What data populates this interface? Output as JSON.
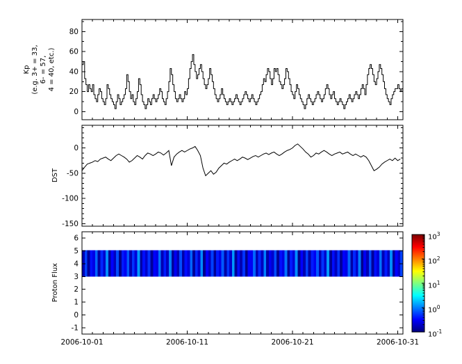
{
  "colors": {
    "line": "#000000",
    "frame": "#000000",
    "background": "#ffffff"
  },
  "ylabels": {
    "kp_lines": [
      "Kp",
      "(e.g. 3+ = 33,",
      "6- = 57,",
      "4 = 40, etc.)"
    ],
    "dst": "DST",
    "flux": "Proton Flux"
  },
  "xaxis": {
    "tick_labels": [
      "2006-10-01",
      "2006-10-11",
      "2006-10-21",
      "2006-10-31"
    ],
    "tick_days": [
      0,
      10,
      20,
      30
    ],
    "domain_days": [
      0,
      30.5
    ]
  },
  "colorbar": {
    "base": "10",
    "tick_exponents": [
      "3",
      "2",
      "1",
      "0",
      "-1"
    ],
    "log_min": -1,
    "log_max": 3,
    "colormap": "jet"
  },
  "chart_data": [
    {
      "type": "line",
      "name": "kp-index",
      "style": "steps",
      "ylabel": "Kp (e.g. 3+ = 33, 6- = 57, 4 = 40, etc.)",
      "ylim": [
        -8,
        92
      ],
      "yticks": [
        0,
        20,
        40,
        60,
        80
      ],
      "yminor_step": 10,
      "cadence_hours": 3,
      "x_start": "2006-10-01",
      "values": [
        47,
        50,
        33,
        27,
        20,
        27,
        23,
        20,
        27,
        17,
        13,
        10,
        17,
        23,
        20,
        13,
        10,
        7,
        13,
        27,
        23,
        17,
        13,
        10,
        7,
        3,
        10,
        17,
        13,
        7,
        10,
        13,
        17,
        23,
        37,
        30,
        20,
        13,
        17,
        10,
        7,
        13,
        20,
        33,
        27,
        17,
        10,
        7,
        3,
        7,
        13,
        10,
        7,
        13,
        17,
        13,
        10,
        13,
        17,
        23,
        20,
        13,
        10,
        7,
        13,
        20,
        30,
        43,
        37,
        27,
        20,
        13,
        10,
        13,
        17,
        13,
        10,
        13,
        20,
        17,
        23,
        33,
        43,
        50,
        57,
        47,
        40,
        33,
        37,
        43,
        47,
        40,
        33,
        27,
        23,
        27,
        33,
        43,
        37,
        30,
        23,
        17,
        13,
        10,
        13,
        17,
        23,
        17,
        13,
        10,
        7,
        10,
        13,
        10,
        7,
        10,
        13,
        17,
        13,
        10,
        7,
        10,
        13,
        17,
        20,
        17,
        13,
        10,
        13,
        17,
        13,
        10,
        7,
        10,
        13,
        17,
        20,
        27,
        33,
        30,
        37,
        43,
        40,
        33,
        27,
        33,
        43,
        40,
        43,
        37,
        30,
        27,
        23,
        27,
        33,
        43,
        40,
        33,
        27,
        20,
        17,
        13,
        20,
        27,
        23,
        17,
        13,
        10,
        7,
        3,
        7,
        13,
        17,
        13,
        10,
        7,
        10,
        13,
        17,
        20,
        17,
        13,
        10,
        13,
        17,
        23,
        27,
        23,
        17,
        13,
        17,
        20,
        13,
        10,
        7,
        10,
        13,
        10,
        7,
        3,
        7,
        10,
        13,
        17,
        13,
        10,
        13,
        17,
        20,
        17,
        13,
        17,
        23,
        27,
        23,
        17,
        27,
        37,
        43,
        47,
        43,
        37,
        30,
        27,
        33,
        40,
        47,
        43,
        37,
        30,
        23,
        17,
        13,
        10,
        7,
        13,
        17,
        20,
        23,
        23,
        27,
        23,
        20,
        23
      ]
    },
    {
      "type": "line",
      "name": "dst-index",
      "style": "line",
      "ylabel": "DST",
      "ylim": [
        -155,
        45
      ],
      "yticks": [
        0,
        -50,
        -100,
        -150
      ],
      "yminor_step": 10,
      "cadence_hours": 6,
      "x_start": "2006-10-01",
      "values": [
        -45,
        -38,
        -32,
        -30,
        -28,
        -25,
        -27,
        -22,
        -20,
        -18,
        -22,
        -25,
        -20,
        -15,
        -12,
        -15,
        -18,
        -22,
        -28,
        -25,
        -20,
        -15,
        -18,
        -22,
        -15,
        -10,
        -12,
        -15,
        -12,
        -8,
        -10,
        -14,
        -10,
        -5,
        -35,
        -18,
        -12,
        -8,
        -5,
        -8,
        -5,
        -2,
        0,
        3,
        -5,
        -15,
        -40,
        -55,
        -50,
        -45,
        -52,
        -48,
        -40,
        -35,
        -30,
        -32,
        -28,
        -25,
        -22,
        -25,
        -22,
        -18,
        -20,
        -23,
        -20,
        -17,
        -15,
        -18,
        -15,
        -12,
        -10,
        -13,
        -10,
        -8,
        -12,
        -15,
        -12,
        -8,
        -5,
        -3,
        0,
        5,
        8,
        3,
        -2,
        -8,
        -12,
        -18,
        -15,
        -10,
        -12,
        -8,
        -5,
        -8,
        -12,
        -15,
        -12,
        -10,
        -8,
        -12,
        -10,
        -8,
        -12,
        -15,
        -12,
        -15,
        -18,
        -15,
        -18,
        -25,
        -35,
        -45,
        -42,
        -38,
        -32,
        -28,
        -25,
        -22,
        -25,
        -20,
        -25,
        -22
      ]
    },
    {
      "type": "heatmap",
      "name": "proton-flux",
      "ylabel": "Proton Flux",
      "ylim": [
        -1.5,
        6.5
      ],
      "yticks": [
        6,
        5,
        4,
        3,
        2,
        1,
        0,
        -1
      ],
      "band": [
        3.0,
        5.05
      ],
      "color_scale": {
        "type": "jet",
        "log_min": -1,
        "log_max": 3
      },
      "log10_values": [
        -0.8,
        -0.25,
        -0.9,
        -0.45,
        -0.6,
        -0.1,
        -0.85,
        -0.35,
        -0.7,
        0.05,
        -0.9,
        -0.5,
        -0.75,
        -0.2,
        -0.95,
        -0.4,
        -0.55,
        -0.15,
        -0.8,
        -0.3,
        -0.65,
        0.1,
        -0.85,
        -0.45,
        -0.7,
        -0.3,
        -0.9,
        -0.5,
        -0.6,
        -0.05,
        -0.8,
        -0.4,
        -0.75,
        0.0,
        -0.9,
        -0.55,
        -0.8,
        -0.2,
        -0.85,
        -0.45,
        -0.65,
        -0.1,
        -0.9,
        -0.35,
        -0.7,
        0.05,
        -0.95,
        -0.5,
        -0.75,
        -0.25,
        -0.9,
        -0.4,
        -0.6,
        -0.15,
        -0.85,
        -0.3,
        -0.7,
        0.1,
        -0.9,
        -0.45,
        -0.8,
        -0.3,
        -0.95,
        -0.5,
        -0.55,
        -0.1,
        -0.8,
        -0.35,
        -0.75,
        0.0,
        -0.85,
        -0.55,
        -0.7,
        -0.2,
        -0.9,
        -0.45,
        -0.6,
        -0.05,
        -0.9,
        -0.4,
        -0.65,
        0.05,
        -0.95,
        -0.5,
        -0.8,
        -0.25,
        -0.85,
        -0.4,
        -0.55,
        -0.15,
        -0.8,
        -0.3,
        -0.7,
        0.1,
        -0.9,
        -0.45,
        -0.75,
        -0.3,
        -0.9,
        -0.5,
        -0.6,
        -0.1,
        -0.85,
        -0.35,
        -0.7,
        0.0,
        -0.95,
        -0.55,
        -0.8,
        -0.2,
        -0.9,
        -0.45,
        -0.65,
        -0.05,
        -0.8,
        -0.4,
        -0.75,
        0.05,
        -0.9,
        -0.5,
        -0.7,
        -0.25
      ]
    }
  ]
}
